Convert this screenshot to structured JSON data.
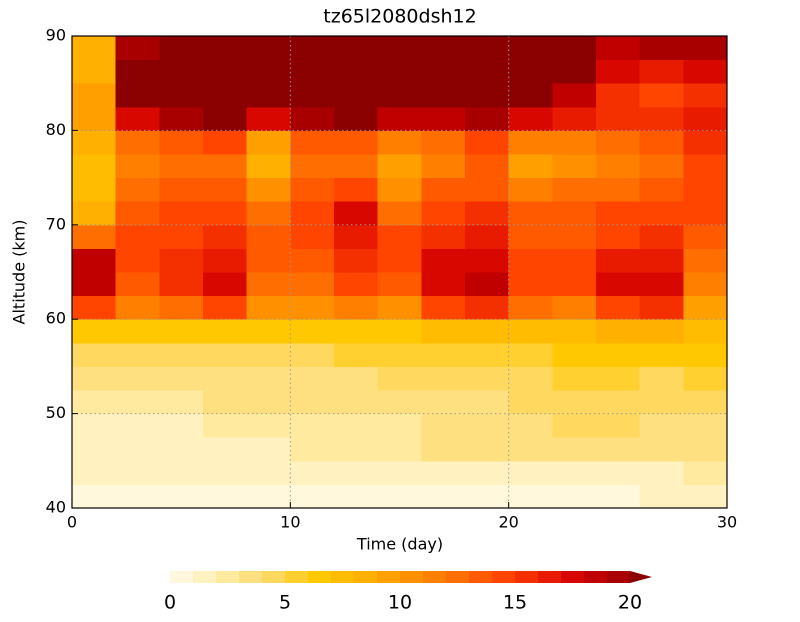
{
  "chart_data": {
    "type": "heatmap",
    "title": "tz65l2080dsh12",
    "xlabel": "Time (day)",
    "ylabel": "Altitude (km)",
    "xlim": [
      0,
      30
    ],
    "xticks": [
      0,
      10,
      20,
      30
    ],
    "ylim": [
      40,
      90
    ],
    "yticks": [
      40,
      50,
      60,
      70,
      80,
      90
    ],
    "grid": true,
    "x": [
      0,
      2,
      4,
      6,
      8,
      10,
      12,
      14,
      16,
      18,
      20,
      22,
      24,
      26,
      28,
      30
    ],
    "y": [
      40,
      42.5,
      45,
      47.5,
      50,
      52.5,
      55,
      57.5,
      60,
      62.5,
      65,
      67.5,
      70,
      72.5,
      75,
      77.5,
      80,
      82.5,
      85,
      87.5,
      90
    ],
    "values": [
      [
        0.8,
        0.8,
        0.8,
        0.8,
        0.8,
        0.7,
        0.7,
        0.7,
        0.7,
        0.7,
        0.7,
        0.7,
        0.9,
        1,
        1.2
      ],
      [
        1,
        1,
        1,
        1,
        1.2,
        1,
        1,
        1,
        1.2,
        1.5,
        1.8,
        1.8,
        1.8,
        1.8,
        2
      ],
      [
        1.5,
        1.2,
        1.2,
        1.5,
        1.8,
        2.2,
        2.2,
        2.5,
        3,
        3,
        3,
        3,
        3,
        3,
        3
      ],
      [
        1.5,
        1.5,
        1.8,
        2,
        2.5,
        2.5,
        2.5,
        2.8,
        3.5,
        3.5,
        3.8,
        4,
        4,
        3.8,
        3.5
      ],
      [
        2.5,
        2.5,
        2.8,
        3,
        3,
        3,
        3,
        3.5,
        3.8,
        3.8,
        4,
        4.5,
        4.5,
        4.2,
        4
      ],
      [
        3.5,
        3.2,
        3.5,
        3.5,
        3.8,
        3.8,
        3.8,
        4,
        4.2,
        4.2,
        4.5,
        5,
        5,
        4.8,
        5
      ],
      [
        4.5,
        4.5,
        4.5,
        4.8,
        4.8,
        4.8,
        5,
        5,
        5.5,
        5.5,
        5.5,
        6,
        6,
        6,
        6
      ],
      [
        6.5,
        6,
        6,
        6.5,
        6,
        6,
        6.5,
        6.5,
        7,
        7,
        7,
        7.5,
        8,
        8,
        7.5
      ],
      [
        14,
        11,
        12,
        14,
        10,
        10,
        11,
        10,
        14,
        15,
        12,
        11,
        14,
        15,
        9
      ],
      [
        18,
        13,
        15,
        17,
        12,
        12,
        14,
        13,
        17,
        18,
        14,
        14,
        17,
        17,
        11
      ],
      [
        18,
        14,
        15,
        16,
        13,
        13,
        15,
        14,
        17,
        17,
        14,
        14,
        16,
        16,
        12
      ],
      [
        12,
        14,
        14,
        15,
        13,
        14,
        16,
        14,
        15,
        16,
        13,
        13,
        14,
        15,
        13
      ],
      [
        8,
        13,
        14,
        14,
        12,
        14,
        17,
        12,
        14,
        15,
        13,
        13,
        14,
        14,
        14
      ],
      [
        7,
        12,
        13,
        13,
        10,
        13,
        14,
        10,
        13,
        13,
        11,
        12,
        12,
        13,
        14
      ],
      [
        7,
        11,
        12,
        12,
        8,
        12,
        12,
        9,
        11,
        13,
        9,
        10,
        11,
        12,
        14
      ],
      [
        8,
        12,
        13,
        14,
        9,
        13,
        13,
        11,
        12,
        14,
        11,
        11,
        12,
        13,
        15
      ],
      [
        9,
        17,
        19,
        21,
        17,
        19,
        20,
        18,
        18,
        19,
        17,
        16,
        15,
        15,
        16
      ],
      [
        9,
        20,
        22,
        22,
        22,
        22,
        22,
        21,
        21,
        22,
        21,
        18,
        15,
        14,
        15
      ],
      [
        8,
        21,
        22,
        22,
        22,
        22,
        22,
        22,
        22,
        22,
        22,
        20,
        17,
        16,
        17
      ],
      [
        8,
        19,
        22,
        22,
        22,
        22,
        22,
        22,
        22,
        22,
        22,
        21,
        18,
        19,
        19
      ]
    ],
    "colorbar": {
      "clim": [
        0,
        20
      ],
      "ticks": [
        0,
        5,
        10,
        15,
        20
      ],
      "colors": [
        "#fff8dc",
        "#fff2c0",
        "#ffeaa0",
        "#ffe080",
        "#ffd860",
        "#ffd030",
        "#ffc800",
        "#ffbc00",
        "#ffb000",
        "#ffa000",
        "#ff9000",
        "#ff8000",
        "#ff6e00",
        "#ff5a00",
        "#ff4500",
        "#f53000",
        "#e81a00",
        "#d80800",
        "#c00000",
        "#a80000",
        "#8b0000"
      ]
    }
  }
}
